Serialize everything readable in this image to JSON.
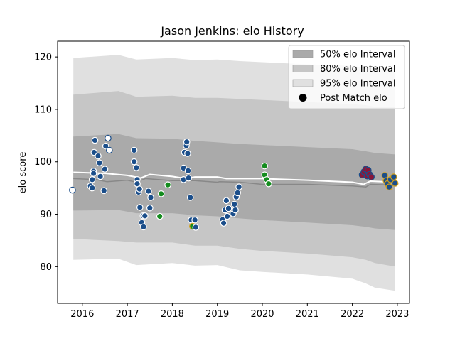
{
  "chart_data": {
    "type": "scatter",
    "title": "Jason Jenkins: elo History",
    "xlabel": "",
    "ylabel": "elo score",
    "xlim": [
      2015.45,
      2023.27
    ],
    "ylim": [
      73.0,
      123.0
    ],
    "xticks": [
      2016,
      2017,
      2018,
      2019,
      2020,
      2021,
      2022,
      2023
    ],
    "xtick_labels": [
      "2016",
      "2017",
      "2018",
      "2019",
      "2020",
      "2021",
      "2022",
      "2023"
    ],
    "yticks": [
      80,
      90,
      100,
      110,
      120
    ],
    "ytick_labels": [
      "80",
      "90",
      "100",
      "110",
      "120"
    ],
    "grid": false,
    "legend_position": "top-right",
    "legend": [
      {
        "label": "50% elo Interval",
        "kind": "band",
        "color": "#aaaaaa"
      },
      {
        "label": "80% elo Interval",
        "kind": "band",
        "color": "#c6c6c6"
      },
      {
        "label": "95% elo Interval",
        "kind": "band",
        "color": "#e0e0e0"
      },
      {
        "label": "Post Match elo",
        "kind": "dot",
        "color": "#000000"
      }
    ],
    "series": [
      {
        "name": "95% elo Interval",
        "color": "#e0e0e0",
        "x": [
          2015.8,
          2016.8,
          2017.2,
          2018.0,
          2018.5,
          2019.0,
          2019.5,
          2020.0,
          2021.0,
          2022.0,
          2022.3,
          2022.5,
          2022.95
        ],
        "upper": [
          119.8,
          120.4,
          119.5,
          119.8,
          119.4,
          119.5,
          119.2,
          119.0,
          118.6,
          118.3,
          118.0,
          117.9,
          117.8
        ],
        "lower": [
          81.3,
          81.5,
          80.3,
          80.7,
          80.2,
          80.3,
          79.3,
          79.0,
          78.5,
          77.7,
          76.8,
          76.0,
          75.4
        ]
      },
      {
        "name": "80% elo Interval",
        "color": "#c6c6c6",
        "x": [
          2015.8,
          2016.8,
          2017.2,
          2018.0,
          2018.5,
          2019.0,
          2019.5,
          2020.0,
          2021.0,
          2022.0,
          2022.3,
          2022.5,
          2022.95
        ],
        "upper": [
          112.8,
          113.5,
          112.4,
          112.6,
          112.2,
          112.2,
          112.0,
          111.8,
          111.4,
          111.0,
          110.8,
          110.5,
          110.4
        ],
        "lower": [
          85.3,
          84.9,
          84.6,
          84.6,
          84.0,
          84.0,
          83.4,
          83.0,
          82.5,
          81.8,
          81.3,
          80.7,
          80.0
        ]
      },
      {
        "name": "50% elo Interval",
        "color": "#aaaaaa",
        "x": [
          2015.8,
          2016.8,
          2017.2,
          2018.0,
          2018.5,
          2019.0,
          2019.5,
          2020.0,
          2021.0,
          2022.0,
          2022.3,
          2022.5,
          2022.95
        ],
        "upper": [
          104.8,
          105.3,
          104.5,
          104.4,
          104.0,
          103.7,
          103.4,
          103.2,
          102.8,
          102.4,
          102.0,
          101.7,
          101.4
        ],
        "lower": [
          90.7,
          90.8,
          90.2,
          90.2,
          89.8,
          89.6,
          89.2,
          88.9,
          88.4,
          87.9,
          87.6,
          87.3,
          87.0
        ]
      },
      {
        "name": "elo estimate",
        "kind": "line",
        "color": "#888888",
        "x": [
          2015.8,
          2016.3,
          2016.55,
          2017.0,
          2017.2,
          2017.4,
          2018.0,
          2018.5,
          2019.0,
          2019.05,
          2019.5,
          2020.0,
          2021.0,
          2022.0,
          2022.3,
          2022.4,
          2022.8,
          2022.95
        ],
        "y": [
          96.8,
          96.6,
          96.2,
          96.5,
          96.1,
          96.8,
          96.4,
          96.4,
          96.1,
          96.2,
          96.1,
          95.7,
          95.7,
          95.4,
          95.2,
          95.7,
          95.6,
          95.4
        ]
      },
      {
        "name": "elo trend",
        "kind": "line",
        "color": "#ffffff",
        "x": [
          2015.8,
          2016.5,
          2017.0,
          2017.3,
          2017.5,
          2018.0,
          2018.3,
          2018.5,
          2019.0,
          2019.2,
          2020.0,
          2021.0,
          2022.0,
          2022.25,
          2022.4,
          2022.95
        ],
        "y": [
          98.0,
          97.8,
          97.4,
          96.9,
          97.6,
          97.2,
          96.8,
          97.1,
          97.1,
          96.8,
          96.8,
          96.5,
          96.1,
          95.7,
          96.3,
          96.1
        ]
      }
    ],
    "points": [
      {
        "x": 2015.78,
        "y": 94.6,
        "color": "#ffffff",
        "edge": "#1b4e8a"
      },
      {
        "x": 2016.18,
        "y": 95.4,
        "color": "#1b4e8a",
        "edge": "#ffffff"
      },
      {
        "x": 2016.22,
        "y": 95.0,
        "color": "#1b4e8a",
        "edge": "#ffffff"
      },
      {
        "x": 2016.22,
        "y": 96.6,
        "color": "#1b4e8a",
        "edge": "#ffffff"
      },
      {
        "x": 2016.25,
        "y": 98.2,
        "color": "#1b4e8a",
        "edge": "#ffffff"
      },
      {
        "x": 2016.25,
        "y": 97.8,
        "color": "#1b4e8a",
        "edge": "#ffffff"
      },
      {
        "x": 2016.26,
        "y": 101.8,
        "color": "#1b4e8a",
        "edge": "#ffffff"
      },
      {
        "x": 2016.28,
        "y": 104.1,
        "color": "#1b4e8a",
        "edge": "#ffffff"
      },
      {
        "x": 2016.35,
        "y": 101.1,
        "color": "#1b4e8a",
        "edge": "#ffffff"
      },
      {
        "x": 2016.38,
        "y": 99.8,
        "color": "#1b4e8a",
        "edge": "#ffffff"
      },
      {
        "x": 2016.4,
        "y": 97.2,
        "color": "#1b4e8a",
        "edge": "#ffffff"
      },
      {
        "x": 2016.48,
        "y": 94.5,
        "color": "#1b4e8a",
        "edge": "#ffffff"
      },
      {
        "x": 2016.5,
        "y": 98.6,
        "color": "#1b4e8a",
        "edge": "#ffffff"
      },
      {
        "x": 2016.52,
        "y": 103.0,
        "color": "#1b4e8a",
        "edge": "#ffffff"
      },
      {
        "x": 2016.57,
        "y": 104.5,
        "color": "#ffffff",
        "edge": "#1b4e8a"
      },
      {
        "x": 2016.6,
        "y": 102.2,
        "color": "#ffffff",
        "edge": "#1b4e8a"
      },
      {
        "x": 2017.15,
        "y": 102.2,
        "color": "#1b4e8a",
        "edge": "#ffffff"
      },
      {
        "x": 2017.15,
        "y": 100.0,
        "color": "#1b4e8a",
        "edge": "#ffffff"
      },
      {
        "x": 2017.2,
        "y": 98.9,
        "color": "#1b4e8a",
        "edge": "#ffffff"
      },
      {
        "x": 2017.22,
        "y": 96.6,
        "color": "#1b4e8a",
        "edge": "#ffffff"
      },
      {
        "x": 2017.22,
        "y": 95.8,
        "color": "#1b4e8a",
        "edge": "#ffffff"
      },
      {
        "x": 2017.25,
        "y": 94.2,
        "color": "#1b4e8a",
        "edge": "#ffffff"
      },
      {
        "x": 2017.27,
        "y": 94.8,
        "color": "#1b4e8a",
        "edge": "#ffffff"
      },
      {
        "x": 2017.28,
        "y": 91.3,
        "color": "#1b4e8a",
        "edge": "#ffffff"
      },
      {
        "x": 2017.32,
        "y": 88.4,
        "color": "#1b4e8a",
        "edge": "#ffffff"
      },
      {
        "x": 2017.35,
        "y": 89.7,
        "color": "#1b4e8a",
        "edge": "#ffffff"
      },
      {
        "x": 2017.36,
        "y": 87.6,
        "color": "#1b4e8a",
        "edge": "#ffffff"
      },
      {
        "x": 2017.39,
        "y": 89.7,
        "color": "#1b4e8a",
        "edge": "#ffffff"
      },
      {
        "x": 2017.47,
        "y": 94.4,
        "color": "#1b4e8a",
        "edge": "#ffffff"
      },
      {
        "x": 2017.5,
        "y": 91.2,
        "color": "#1b4e8a",
        "edge": "#ffffff"
      },
      {
        "x": 2017.52,
        "y": 93.2,
        "color": "#1b4e8a",
        "edge": "#ffffff"
      },
      {
        "x": 2017.72,
        "y": 89.6,
        "color": "#148c1e",
        "edge": "#ffffff"
      },
      {
        "x": 2017.75,
        "y": 93.9,
        "color": "#148c1e",
        "edge": "#ffffff"
      },
      {
        "x": 2017.9,
        "y": 95.6,
        "color": "#148c1e",
        "edge": "#ffffff"
      },
      {
        "x": 2018.25,
        "y": 98.8,
        "color": "#1b4e8a",
        "edge": "#ffffff"
      },
      {
        "x": 2018.25,
        "y": 96.6,
        "color": "#1b4e8a",
        "edge": "#ffffff"
      },
      {
        "x": 2018.27,
        "y": 101.8,
        "color": "#1b4e8a",
        "edge": "#ffffff"
      },
      {
        "x": 2018.31,
        "y": 103.1,
        "color": "#1b4e8a",
        "edge": "#ffffff"
      },
      {
        "x": 2018.32,
        "y": 103.8,
        "color": "#1b4e8a",
        "edge": "#ffffff"
      },
      {
        "x": 2018.34,
        "y": 101.6,
        "color": "#1b4e8a",
        "edge": "#ffffff"
      },
      {
        "x": 2018.35,
        "y": 98.3,
        "color": "#1b4e8a",
        "edge": "#ffffff"
      },
      {
        "x": 2018.36,
        "y": 96.9,
        "color": "#1b4e8a",
        "edge": "#ffffff"
      },
      {
        "x": 2018.4,
        "y": 93.2,
        "color": "#1b4e8a",
        "edge": "#ffffff"
      },
      {
        "x": 2018.42,
        "y": 88.9,
        "color": "#1b4e8a",
        "edge": "#ffffff"
      },
      {
        "x": 2018.45,
        "y": 87.7,
        "color": "#148c1e",
        "edge": "#d4a017"
      },
      {
        "x": 2018.5,
        "y": 88.9,
        "color": "#1b4e8a",
        "edge": "#ffffff"
      },
      {
        "x": 2018.52,
        "y": 87.5,
        "color": "#1b4e8a",
        "edge": "#ffffff"
      },
      {
        "x": 2019.12,
        "y": 89.0,
        "color": "#1b4e8a",
        "edge": "#ffffff"
      },
      {
        "x": 2019.14,
        "y": 88.3,
        "color": "#1b4e8a",
        "edge": "#ffffff"
      },
      {
        "x": 2019.17,
        "y": 90.8,
        "color": "#1b4e8a",
        "edge": "#ffffff"
      },
      {
        "x": 2019.2,
        "y": 92.6,
        "color": "#1b4e8a",
        "edge": "#ffffff"
      },
      {
        "x": 2019.22,
        "y": 89.6,
        "color": "#1b4e8a",
        "edge": "#ffffff"
      },
      {
        "x": 2019.25,
        "y": 91.1,
        "color": "#1b4e8a",
        "edge": "#ffffff"
      },
      {
        "x": 2019.35,
        "y": 90.1,
        "color": "#1b4e8a",
        "edge": "#ffffff"
      },
      {
        "x": 2019.38,
        "y": 91.9,
        "color": "#1b4e8a",
        "edge": "#ffffff"
      },
      {
        "x": 2019.4,
        "y": 90.8,
        "color": "#1b4e8a",
        "edge": "#ffffff"
      },
      {
        "x": 2019.42,
        "y": 93.3,
        "color": "#1b4e8a",
        "edge": "#ffffff"
      },
      {
        "x": 2019.45,
        "y": 94.1,
        "color": "#1b4e8a",
        "edge": "#ffffff"
      },
      {
        "x": 2019.48,
        "y": 95.2,
        "color": "#1b4e8a",
        "edge": "#ffffff"
      },
      {
        "x": 2020.05,
        "y": 99.2,
        "color": "#148c1e",
        "edge": "#ffffff"
      },
      {
        "x": 2020.05,
        "y": 97.5,
        "color": "#148c1e",
        "edge": "#ffffff"
      },
      {
        "x": 2020.1,
        "y": 96.6,
        "color": "#148c1e",
        "edge": "#ffffff"
      },
      {
        "x": 2020.14,
        "y": 95.8,
        "color": "#148c1e",
        "edge": "#ffffff"
      },
      {
        "x": 2022.22,
        "y": 97.5,
        "color": "#8a1538",
        "edge": "#1b4e8a"
      },
      {
        "x": 2022.26,
        "y": 98.1,
        "color": "#8a1538",
        "edge": "#1b4e8a"
      },
      {
        "x": 2022.3,
        "y": 98.6,
        "color": "#8a1538",
        "edge": "#1b4e8a"
      },
      {
        "x": 2022.33,
        "y": 97.3,
        "color": "#8a1538",
        "edge": "#1b4e8a"
      },
      {
        "x": 2022.35,
        "y": 98.4,
        "color": "#8a1538",
        "edge": "#1b4e8a"
      },
      {
        "x": 2022.38,
        "y": 97.6,
        "color": "#8a1538",
        "edge": "#1b4e8a"
      },
      {
        "x": 2022.42,
        "y": 97.1,
        "color": "#8a1538",
        "edge": "#1b4e8a"
      },
      {
        "x": 2022.72,
        "y": 97.4,
        "color": "#1b4e8a",
        "edge": "#d4a017"
      },
      {
        "x": 2022.75,
        "y": 96.4,
        "color": "#1b4e8a",
        "edge": "#d4a017"
      },
      {
        "x": 2022.78,
        "y": 95.8,
        "color": "#1b4e8a",
        "edge": "#d4a017"
      },
      {
        "x": 2022.82,
        "y": 95.2,
        "color": "#1b4e8a",
        "edge": "#d4a017"
      },
      {
        "x": 2022.85,
        "y": 96.6,
        "color": "#1b4e8a",
        "edge": "#d4a017"
      },
      {
        "x": 2022.92,
        "y": 97.1,
        "color": "#1b4e8a",
        "edge": "#d4a017"
      },
      {
        "x": 2022.95,
        "y": 95.9,
        "color": "#1b4e8a",
        "edge": "#d4a017"
      }
    ]
  }
}
